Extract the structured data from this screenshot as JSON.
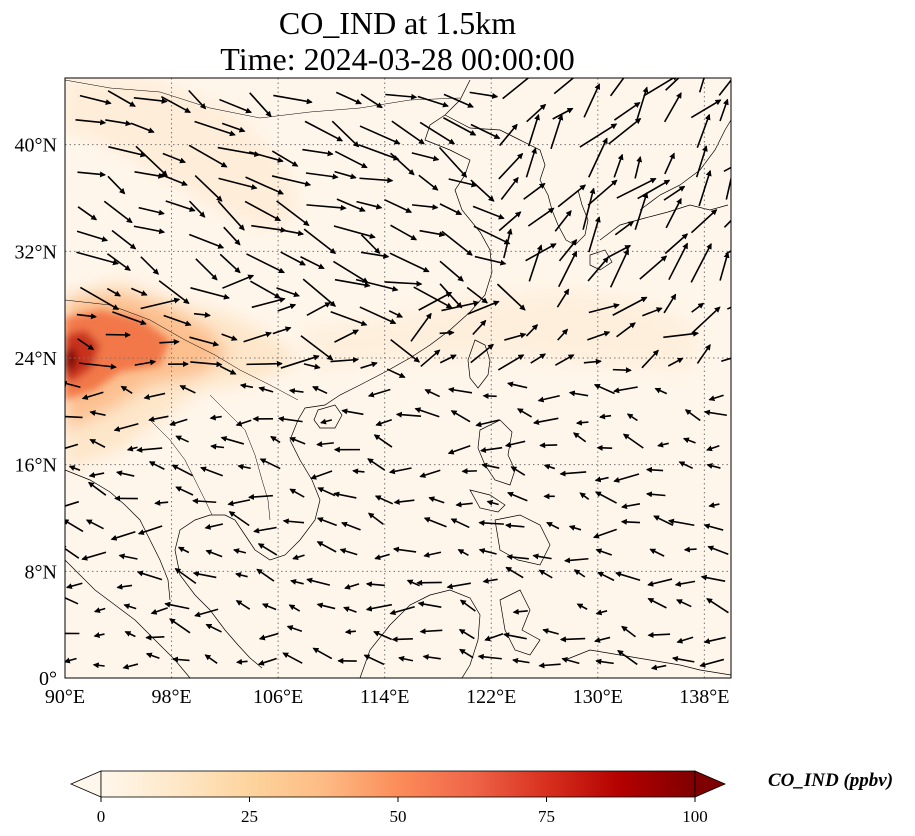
{
  "title": {
    "line1": "CO_IND at 1.5km",
    "line2": "Time: 2024-03-28 00:00:00"
  },
  "map": {
    "extent": {
      "lon_min": 90,
      "lon_max": 140,
      "lat_min": 0,
      "lat_max": 45
    },
    "lon_ticks": [
      90,
      98,
      106,
      114,
      122,
      130,
      138
    ],
    "lon_tick_labels": [
      "90°E",
      "98°E",
      "106°E",
      "114°E",
      "122°E",
      "130°E",
      "138°E"
    ],
    "lat_ticks": [
      0,
      8,
      16,
      24,
      32,
      40
    ],
    "lat_tick_labels": [
      "0°",
      "8°N",
      "16°N",
      "24°N",
      "32°N",
      "40°N"
    ],
    "gridlines": true,
    "background_color": "#fff6eb",
    "plume_colors": [
      "#fde6c9",
      "#fcc08f",
      "#f2784a",
      "#c8321e",
      "#7f0000"
    ]
  },
  "colorbar": {
    "label": "CO_IND (ppbv)",
    "min": 0,
    "max": 100,
    "ticks": [
      0,
      25,
      50,
      75,
      100
    ],
    "tick_labels": [
      "0",
      "25",
      "50",
      "75",
      "100"
    ],
    "extend": "both",
    "colormap": "OrRd",
    "colors": [
      "#fff7ec",
      "#fee8c8",
      "#fdd49e",
      "#fdbb84",
      "#fc8d59",
      "#ef6548",
      "#d7301f",
      "#b30000",
      "#7f0000"
    ]
  }
}
